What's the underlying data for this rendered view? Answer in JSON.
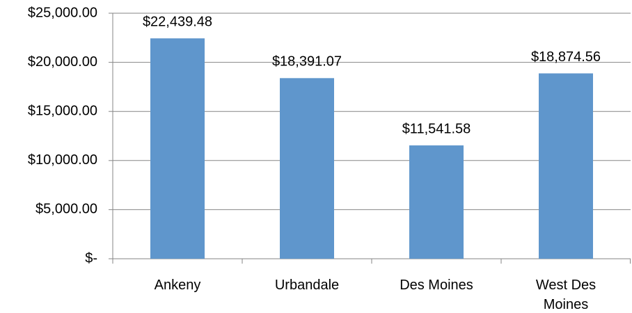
{
  "chart_data": {
    "type": "bar",
    "categories": [
      "Ankeny",
      "Urbandale",
      "Des Moines",
      "West Des Moines"
    ],
    "values": [
      22439.48,
      18391.07,
      11541.58,
      18874.56
    ],
    "value_labels": [
      "$22,439.48",
      "$18,391.07",
      "$11,541.58",
      "$18,874.56"
    ],
    "color": "#5f96cc",
    "ylim": [
      0,
      25000
    ],
    "yticks": [
      {
        "value": 0,
        "label": "$-"
      },
      {
        "value": 5000,
        "label": "$5,000.00"
      },
      {
        "value": 10000,
        "label": "$10,000.00"
      },
      {
        "value": 15000,
        "label": "$15,000.00"
      },
      {
        "value": 20000,
        "label": "$20,000.00"
      },
      {
        "value": 25000,
        "label": "$25,000.00"
      }
    ],
    "grid": true
  }
}
